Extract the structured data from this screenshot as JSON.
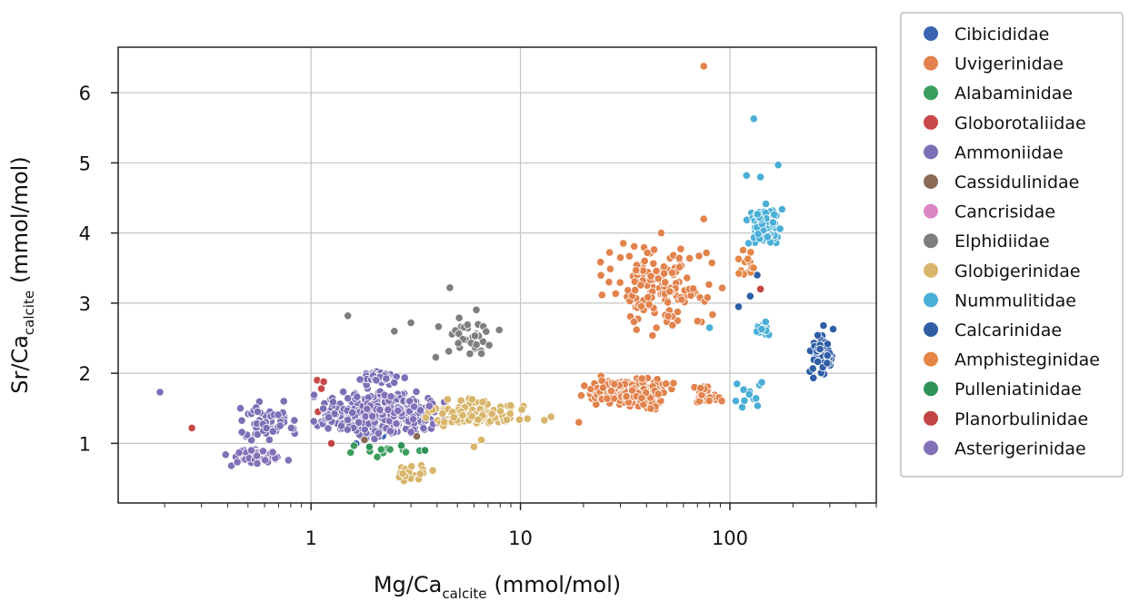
{
  "chart_data": {
    "type": "scatter",
    "x_scale": "log",
    "x_axis": {
      "label_main": "Mg/Ca",
      "label_sub": "calcite",
      "label_unit": "(mmol/mol)",
      "ticks": [
        1,
        10,
        100
      ],
      "tick_labels": [
        "1",
        "10",
        "100"
      ],
      "range": [
        0.12,
        500
      ]
    },
    "y_axis": {
      "label_main": "Sr/Ca",
      "label_sub": "calcite",
      "label_unit": "(mmol/mol)",
      "ticks": [
        1,
        2,
        3,
        4,
        5,
        6
      ],
      "tick_labels": [
        "1",
        "2",
        "3",
        "4",
        "5",
        "6"
      ],
      "range": [
        0.15,
        6.65
      ]
    },
    "grid": true,
    "legend_position": "right",
    "series": [
      {
        "name": "Cibicididae",
        "color": "#3b64b0",
        "clusters": [
          {
            "x": [
              0.9,
              5
            ],
            "y": [
              0.9,
              1.4
            ],
            "n": 14
          }
        ]
      },
      {
        "name": "Uvigerinidae",
        "color": "#e2824c",
        "clusters": [
          {
            "x": [
              20,
              100
            ],
            "y": [
              2.5,
              4.0
            ],
            "n": 150
          },
          {
            "x": [
              18,
              60
            ],
            "y": [
              1.45,
              2.0
            ],
            "n": 260
          },
          {
            "x": [
              60,
              95
            ],
            "y": [
              1.5,
              1.85
            ],
            "n": 30
          }
        ],
        "points": [
          [
            75,
            6.38
          ],
          [
            75,
            4.2
          ],
          [
            30,
            3.65
          ],
          [
            47,
            4.0
          ],
          [
            19,
            1.3
          ]
        ]
      },
      {
        "name": "Alabaminidae",
        "color": "#3c9e5e",
        "clusters": [
          {
            "x": [
              1.1,
              4
            ],
            "y": [
              0.75,
              1.0
            ],
            "n": 12
          }
        ]
      },
      {
        "name": "Globorotaliidae",
        "color": "#c94848",
        "points": [
          [
            0.27,
            1.22
          ],
          [
            1.07,
            1.9
          ],
          [
            1.12,
            1.78
          ],
          [
            1.15,
            1.88
          ],
          [
            1.08,
            1.45
          ],
          [
            2.5,
            1.15
          ],
          [
            1.3,
            1.55
          ],
          [
            125,
            3.1
          ]
        ]
      },
      {
        "name": "Ammoniidae",
        "color": "#7d6fb6",
        "clusters": [
          {
            "x": [
              0.9,
              5
            ],
            "y": [
              1.0,
              1.85
            ],
            "n": 420
          },
          {
            "x": [
              0.4,
              1.0
            ],
            "y": [
              0.9,
              1.7
            ],
            "n": 60
          },
          {
            "x": [
              1.5,
              3.0
            ],
            "y": [
              1.8,
              2.05
            ],
            "n": 40
          }
        ],
        "points": [
          [
            0.19,
            1.73
          ]
        ]
      },
      {
        "name": "Cassidulinidae",
        "color": "#8b6a55",
        "points": [
          [
            2.3,
            1.2
          ],
          [
            3.2,
            1.1
          ],
          [
            1.8,
            1.05
          ]
        ]
      },
      {
        "name": "Cancrisidae",
        "color": "#dc86c5",
        "points": []
      },
      {
        "name": "Elphidiidae",
        "color": "#7e7e7e",
        "clusters": [
          {
            "x": [
              3.5,
              10
            ],
            "y": [
              2.1,
              3.0
            ],
            "n": 35
          }
        ],
        "points": [
          [
            1.5,
            2.82
          ],
          [
            4.6,
            3.22
          ],
          [
            3,
            2.72
          ],
          [
            2.5,
            2.6
          ]
        ]
      },
      {
        "name": "Globigerinidae",
        "color": "#d7b56a",
        "clusters": [
          {
            "x": [
              3,
              12
            ],
            "y": [
              1.2,
              1.7
            ],
            "n": 120
          },
          {
            "x": [
              2.2,
              4
            ],
            "y": [
              0.4,
              0.8
            ],
            "n": 18
          }
        ],
        "points": [
          [
            14,
            1.38
          ],
          [
            13,
            1.33
          ],
          [
            6,
            0.95
          ],
          [
            6.5,
            1.05
          ]
        ]
      },
      {
        "name": "Nummulitidae",
        "color": "#4aafd6",
        "clusters": [
          {
            "x": [
              115,
              190
            ],
            "y": [
              3.65,
              4.5
            ],
            "n": 100
          },
          {
            "x": [
              125,
              160
            ],
            "y": [
              2.5,
              2.75
            ],
            "n": 18
          },
          {
            "x": [
              95,
              150
            ],
            "y": [
              1.3,
              2.1
            ],
            "n": 12
          }
        ],
        "points": [
          [
            130,
            5.63
          ],
          [
            140,
            4.8
          ],
          [
            170,
            4.97
          ],
          [
            120,
            4.82
          ],
          [
            80,
            2.65
          ]
        ]
      },
      {
        "name": "Calcarinidae",
        "color": "#2f5ea6",
        "clusters": [
          {
            "x": [
              230,
              320
            ],
            "y": [
              1.8,
              2.8
            ],
            "n": 60
          }
        ],
        "points": [
          [
            135,
            3.4
          ],
          [
            125,
            3.1
          ],
          [
            110,
            2.95
          ]
        ]
      },
      {
        "name": "Amphisteginidae",
        "color": "#e58646",
        "clusters": [
          {
            "x": [
              100,
              150
            ],
            "y": [
              3.1,
              3.9
            ],
            "n": 14
          }
        ]
      },
      {
        "name": "Pulleniatinidae",
        "color": "#2f9259",
        "points": [
          [
            2.7,
            0.97
          ],
          [
            3.5,
            0.9
          ],
          [
            1.9,
            0.95
          ]
        ]
      },
      {
        "name": "Planorbulinidae",
        "color": "#c24544",
        "points": [
          [
            140,
            3.2
          ],
          [
            1.25,
            1.0
          ]
        ]
      },
      {
        "name": "Asterigerinidae",
        "color": "#8370b8",
        "clusters": [
          {
            "x": [
              0.35,
              0.9
            ],
            "y": [
              0.65,
              0.95
            ],
            "n": 40
          },
          {
            "x": [
              1.5,
              4
            ],
            "y": [
              1.05,
              1.8
            ],
            "n": 40
          }
        ]
      }
    ]
  }
}
